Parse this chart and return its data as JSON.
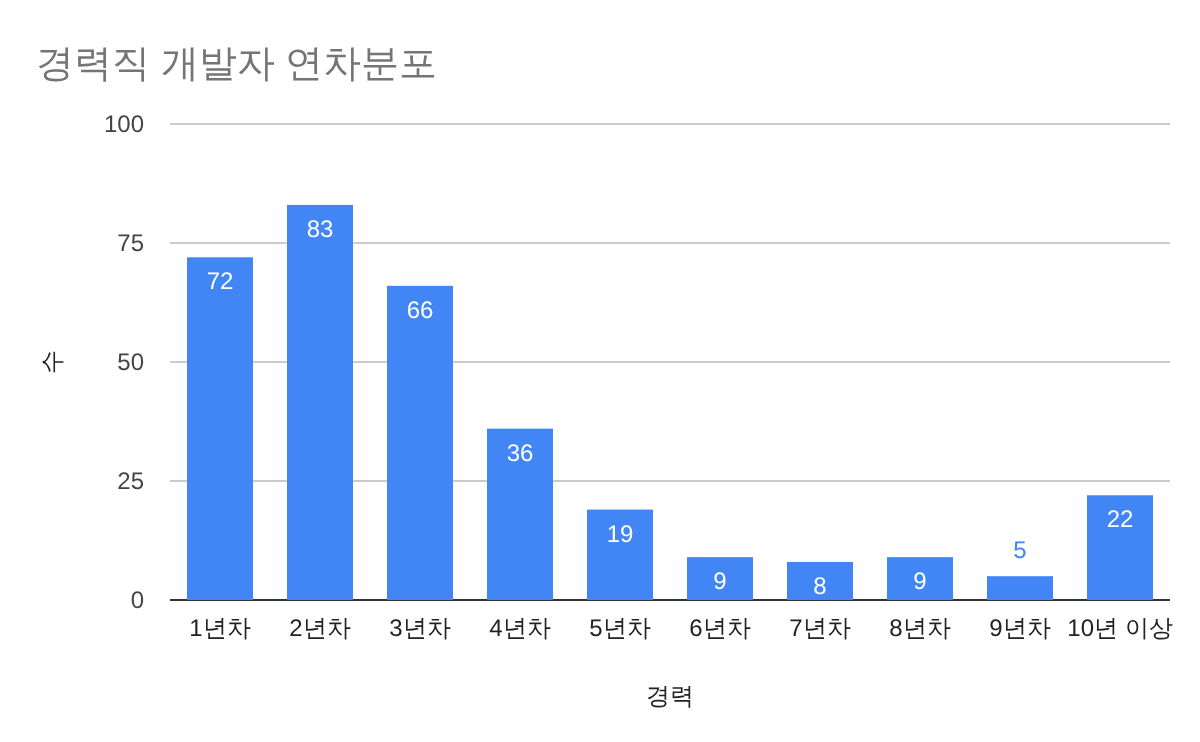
{
  "chart_data": {
    "type": "bar",
    "title": "경력직 개발자 연차분포",
    "xlabel": "경력",
    "ylabel": "수",
    "categories": [
      "1년차",
      "2년차",
      "3년차",
      "4년차",
      "5년차",
      "6년차",
      "7년차",
      "8년차",
      "9년차",
      "10년 이상"
    ],
    "values": [
      72,
      83,
      66,
      36,
      19,
      9,
      8,
      9,
      5,
      22
    ],
    "color": "#4285f4",
    "ylim": [
      0,
      100
    ],
    "yticks": [
      0,
      25,
      50,
      75,
      100
    ],
    "grid": "y",
    "data_labels": true
  }
}
